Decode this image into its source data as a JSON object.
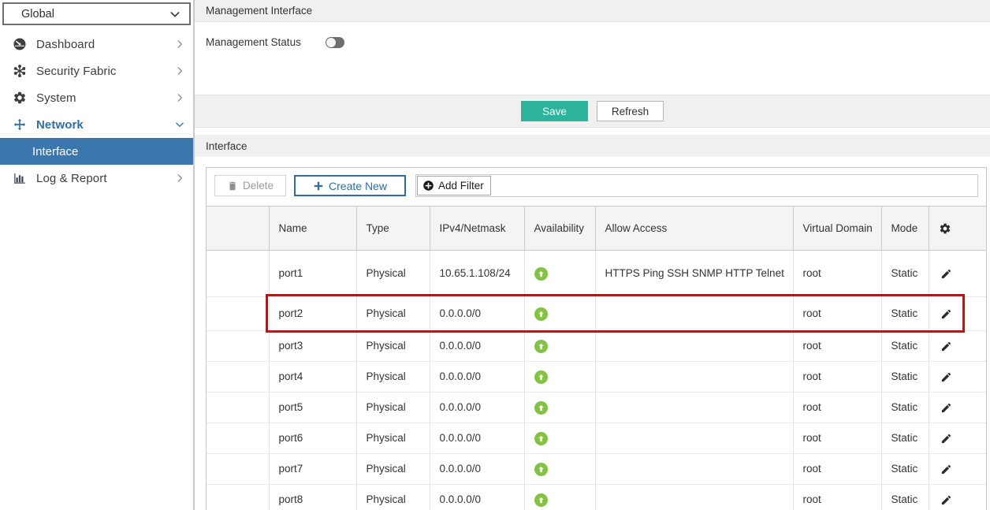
{
  "vdom_selector": {
    "value": "Global"
  },
  "sidebar": {
    "items": [
      {
        "label": "Dashboard",
        "icon": "dashboard-icon",
        "chevron": "right"
      },
      {
        "label": "Security Fabric",
        "icon": "security-fabric-icon",
        "chevron": "right"
      },
      {
        "label": "System",
        "icon": "gear-icon",
        "chevron": "right"
      },
      {
        "label": "Network",
        "icon": "network-icon",
        "chevron": "down",
        "state": "expanded"
      },
      {
        "label": "Interface",
        "type": "subitem",
        "state": "selected"
      },
      {
        "label": "Log & Report",
        "icon": "bar-chart-icon",
        "chevron": "right"
      }
    ]
  },
  "header": {
    "title": "Management Interface"
  },
  "form": {
    "management_status_label": "Management Status",
    "management_status_value": "off"
  },
  "actions": {
    "save_label": "Save",
    "refresh_label": "Refresh"
  },
  "section": {
    "title": "Interface"
  },
  "toolbar": {
    "delete_label": "Delete",
    "create_new_label": "Create New",
    "add_filter_label": "Add Filter"
  },
  "table": {
    "columns": [
      "",
      "Name",
      "Type",
      "IPv4/Netmask",
      "Availability",
      "Allow Access",
      "Virtual Domain",
      "Mode",
      "settings-gear-icon"
    ],
    "rows": [
      {
        "name": "port1",
        "type": "Physical",
        "ip": "10.65.1.108/24",
        "availability": "up",
        "allow_access": "HTTPS Ping SSH SNMP HTTP Telnet",
        "vdom": "root",
        "mode": "Static"
      },
      {
        "name": "port2",
        "type": "Physical",
        "ip": "0.0.0.0/0",
        "availability": "up",
        "allow_access": "",
        "vdom": "root",
        "mode": "Static"
      },
      {
        "name": "port3",
        "type": "Physical",
        "ip": "0.0.0.0/0",
        "availability": "up",
        "allow_access": "",
        "vdom": "root",
        "mode": "Static"
      },
      {
        "name": "port4",
        "type": "Physical",
        "ip": "0.0.0.0/0",
        "availability": "up",
        "allow_access": "",
        "vdom": "root",
        "mode": "Static"
      },
      {
        "name": "port5",
        "type": "Physical",
        "ip": "0.0.0.0/0",
        "availability": "up",
        "allow_access": "",
        "vdom": "root",
        "mode": "Static"
      },
      {
        "name": "port6",
        "type": "Physical",
        "ip": "0.0.0.0/0",
        "availability": "up",
        "allow_access": "",
        "vdom": "root",
        "mode": "Static"
      },
      {
        "name": "port7",
        "type": "Physical",
        "ip": "0.0.0.0/0",
        "availability": "up",
        "allow_access": "",
        "vdom": "root",
        "mode": "Static"
      },
      {
        "name": "port8",
        "type": "Physical",
        "ip": "0.0.0.0/0",
        "availability": "up",
        "allow_access": "",
        "vdom": "root",
        "mode": "Static"
      }
    ]
  },
  "annotation": {
    "highlighted_row": "port2",
    "color": "#e60000"
  },
  "colors": {
    "save_green": "#2cb39b",
    "primary_blue": "#2e6da4",
    "sidebar_selected_blue": "#3b76af",
    "status_up_green": "#82c341",
    "annotation_red": "#e60000"
  }
}
